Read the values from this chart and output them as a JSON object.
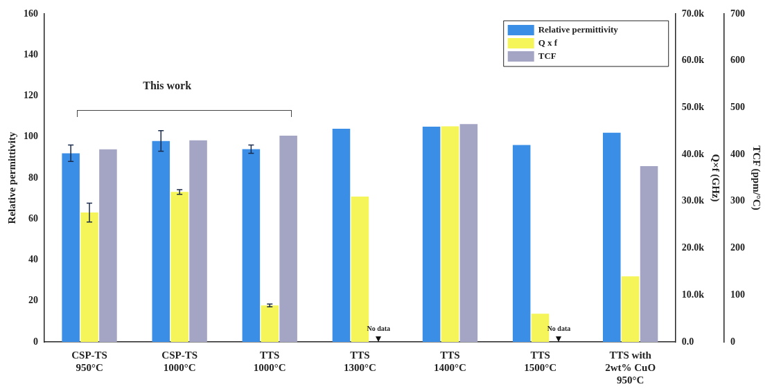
{
  "chart_data": {
    "type": "bar",
    "categories": [
      "CSP-TS\n950°C",
      "CSP-TS\n1000°C",
      "TTS\n1000°C",
      "TTS\n1300°C",
      "TTS\n1400°C",
      "TTS\n1500°C",
      "TTS with\n2wt% CuO\n950°C"
    ],
    "series": [
      {
        "name": "Relative permittivity",
        "color": "#3a8ee6",
        "values": [
          92,
          98,
          94,
          104,
          105,
          96,
          102
        ],
        "errors": [
          4,
          5,
          2,
          null,
          null,
          null,
          null
        ]
      },
      {
        "name": "Q x f",
        "color": "#f5f55a",
        "axis": "y2",
        "values": [
          27600,
          32000,
          7800,
          31000,
          46000,
          6000,
          14000
        ],
        "errors": [
          2000,
          500,
          300,
          null,
          null,
          null,
          null
        ]
      },
      {
        "name": "TCF",
        "color": "#a4a4c4",
        "axis": "y3",
        "values": [
          411,
          430,
          440,
          null,
          465,
          null,
          375
        ]
      }
    ],
    "ylabel": "Relative permittivity",
    "y2label": "Q×f (GHz)",
    "y3label": "TCF (ppm/°C)",
    "ylim": [
      0,
      160
    ],
    "yticks": [
      0,
      20,
      40,
      60,
      80,
      100,
      120,
      140,
      160
    ],
    "y2lim": [
      0,
      70000
    ],
    "y2ticks": [
      {
        "value": 0,
        "label": "0.0"
      },
      {
        "value": 10000,
        "label": "10.0k"
      },
      {
        "value": 20000,
        "label": "20.0k"
      },
      {
        "value": 30000,
        "label": "30.0k"
      },
      {
        "value": 40000,
        "label": "40.0k"
      },
      {
        "value": 50000,
        "label": "50.0k"
      },
      {
        "value": 60000,
        "label": "60.0k"
      },
      {
        "value": 70000,
        "label": "70.0k"
      }
    ],
    "y3lim": [
      0,
      700
    ],
    "y3ticks": [
      0,
      100,
      200,
      300,
      400,
      500,
      600,
      700
    ],
    "legend": "top right",
    "grid": false,
    "annotations": [
      "This work",
      {
        "text": "No data",
        "x": "TTS\n1300°C",
        "y": 0
      },
      {
        "text": "No data",
        "x": "TTS\n1500°C",
        "y": 0
      }
    ]
  }
}
